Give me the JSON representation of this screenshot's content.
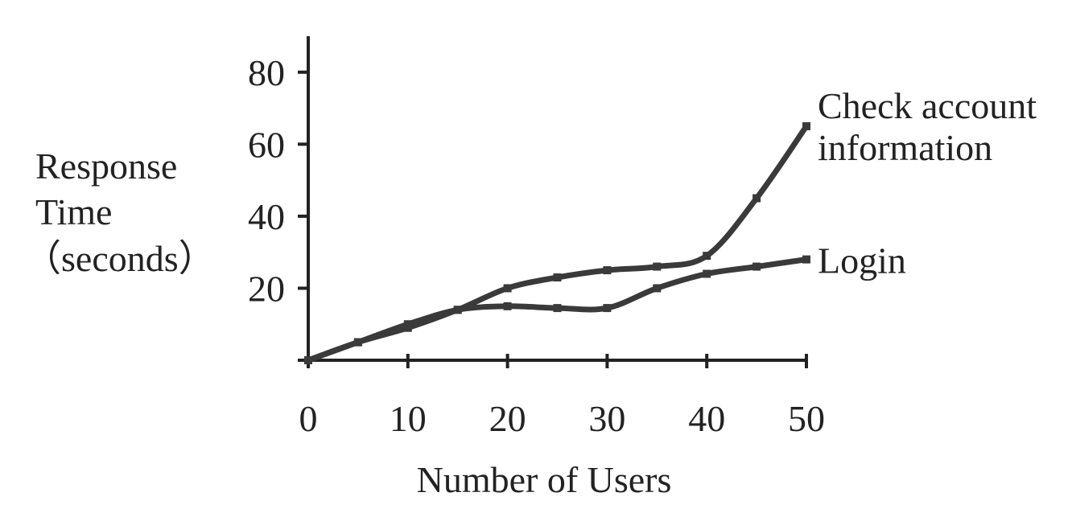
{
  "chart_data": {
    "type": "line",
    "xlabel": "Number of Users",
    "ylabel_lines": [
      "Response",
      "Time",
      "（seconds）"
    ],
    "xlim": [
      0,
      50
    ],
    "ylim": [
      0,
      90
    ],
    "x_ticks": [
      "0",
      "10",
      "20",
      "30",
      "40",
      "50"
    ],
    "y_ticks": [
      "20",
      "40",
      "60",
      "80"
    ],
    "x_tick_values": [
      0,
      10,
      20,
      30,
      40,
      50
    ],
    "y_tick_values": [
      20,
      40,
      60,
      80
    ],
    "grid": false,
    "legend": "none (series labeled directly at right end of lines)",
    "series": [
      {
        "name": "Check account information",
        "label_lines": [
          "Check account",
          "information"
        ],
        "x": [
          0,
          5,
          10,
          15,
          20,
          25,
          30,
          35,
          40,
          45,
          50
        ],
        "y": [
          0,
          5,
          9,
          14,
          20,
          23,
          25,
          26,
          29,
          45,
          65
        ],
        "color": "#3a3a3a"
      },
      {
        "name": "Login",
        "label_lines": [
          "Login"
        ],
        "x": [
          0,
          5,
          10,
          15,
          20,
          25,
          30,
          35,
          40,
          45,
          50
        ],
        "y": [
          0,
          5,
          10,
          14,
          15,
          14.5,
          14.5,
          20,
          24,
          26,
          28
        ],
        "color": "#3a3a3a"
      }
    ]
  }
}
